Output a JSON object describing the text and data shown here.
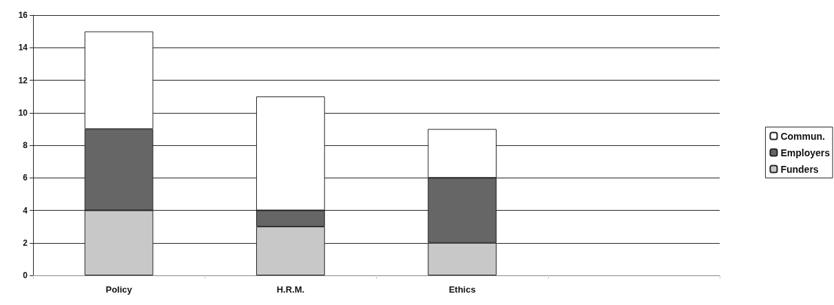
{
  "chart_data": {
    "type": "bar",
    "stacked": true,
    "categories": [
      "Policy",
      "H.R.M.",
      "Ethics",
      null
    ],
    "series": [
      {
        "name": "Funders",
        "color": "#c8c8c8",
        "values": [
          4,
          3,
          2,
          null
        ]
      },
      {
        "name": "Employers",
        "color": "#666666",
        "values": [
          5,
          1,
          4,
          null
        ]
      },
      {
        "name": "Commun.",
        "color": "#ffffff",
        "values": [
          6,
          7,
          3,
          null
        ]
      }
    ],
    "ylim": [
      0,
      16
    ],
    "yticks": [
      0,
      2,
      4,
      6,
      8,
      10,
      12,
      14,
      16
    ],
    "grid": "y",
    "legend": "right"
  }
}
